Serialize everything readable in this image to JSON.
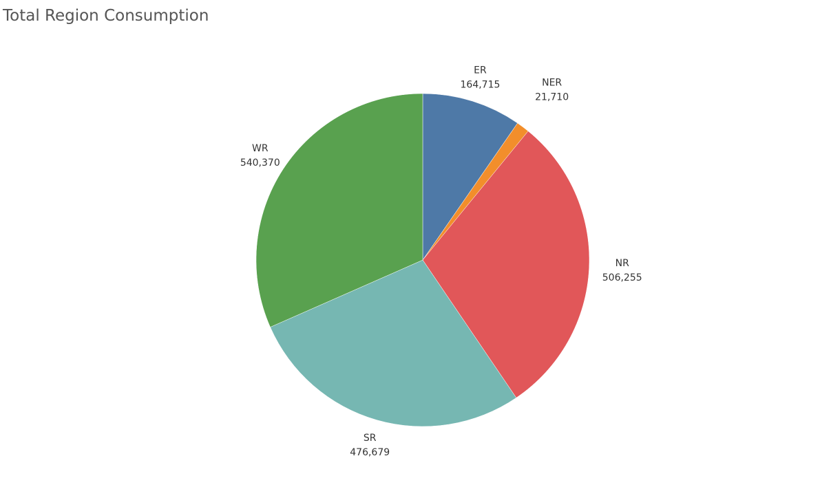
{
  "chart_data": {
    "type": "pie",
    "title": "Total Region Consumption",
    "slices": [
      {
        "label": "ER",
        "value": 164715,
        "value_label": "164,715",
        "color": "#4e79a7"
      },
      {
        "label": "NER",
        "value": 21710,
        "value_label": "21,710",
        "color": "#f28e2b"
      },
      {
        "label": "NR",
        "value": 506255,
        "value_label": "506,255",
        "color": "#e15759"
      },
      {
        "label": "SR",
        "value": 476679,
        "value_label": "476,679",
        "color": "#76b7b2"
      },
      {
        "label": "WR",
        "value": 540370,
        "value_label": "540,370",
        "color": "#59a14f"
      }
    ],
    "start_angle": "12 o'clock",
    "direction": "clockwise",
    "legend": "none"
  }
}
